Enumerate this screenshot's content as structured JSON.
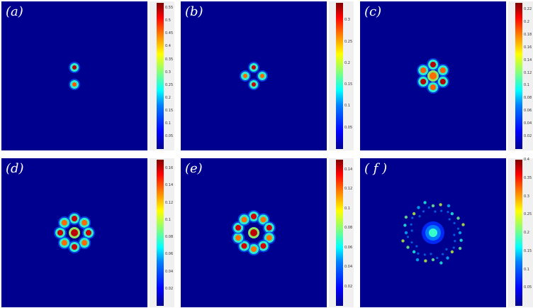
{
  "chart_data": [
    {
      "type": "heatmap",
      "label": "(a)",
      "colorbar_ticks": [
        "0.55",
        "0.5",
        "0.45",
        "0.4",
        "0.35",
        "0.3",
        "0.25",
        "0.2",
        "0.15",
        "0.1",
        "0.05"
      ],
      "vmin": 0,
      "vmax": 0.57,
      "pattern": "two-lobe",
      "lobes": 2,
      "peak": 0.55
    },
    {
      "type": "heatmap",
      "label": "(b)",
      "colorbar_ticks": [
        "0.3",
        "0.25",
        "0.2",
        "0.15",
        "0.1",
        "0.05"
      ],
      "vmin": 0,
      "vmax": 0.34,
      "pattern": "four-lobe",
      "lobes": 4,
      "peak": 0.32
    },
    {
      "type": "heatmap",
      "label": "(c)",
      "colorbar_ticks": [
        "0.22",
        "0.2",
        "0.18",
        "0.16",
        "0.14",
        "0.12",
        "0.1",
        "0.08",
        "0.06",
        "0.04",
        "0.02"
      ],
      "vmin": 0,
      "vmax": 0.23,
      "pattern": "six-lobe",
      "lobes": 6,
      "peak": 0.22
    },
    {
      "type": "heatmap",
      "label": "(d)",
      "colorbar_ticks": [
        "0.16",
        "0.14",
        "0.12",
        "0.1",
        "0.08",
        "0.06",
        "0.04",
        "0.02"
      ],
      "vmin": 0,
      "vmax": 0.17,
      "pattern": "eight-lobe ring",
      "lobes": 8,
      "peak": 0.16
    },
    {
      "type": "heatmap",
      "label": "(e)",
      "colorbar_ticks": [
        "0.14",
        "0.12",
        "0.1",
        "0.08",
        "0.06",
        "0.04",
        "0.02"
      ],
      "vmin": 0,
      "vmax": 0.15,
      "pattern": "ten-lobe ring",
      "lobes": 10,
      "peak": 0.14
    },
    {
      "type": "heatmap",
      "label": "( f )",
      "colorbar_ticks": [
        "0.4",
        "0.35",
        "0.3",
        "0.25",
        "0.2",
        "0.15",
        "0.1",
        "0.05"
      ],
      "vmin": 0,
      "vmax": 0.4,
      "pattern": "center spot with speckled ring",
      "lobes": 24,
      "peak": 0.2
    }
  ],
  "colors": {
    "background": "#00008f",
    "low": "#0000ff",
    "mid": "#00ffff",
    "high": "#ffff00",
    "peak": "#ff0000"
  }
}
